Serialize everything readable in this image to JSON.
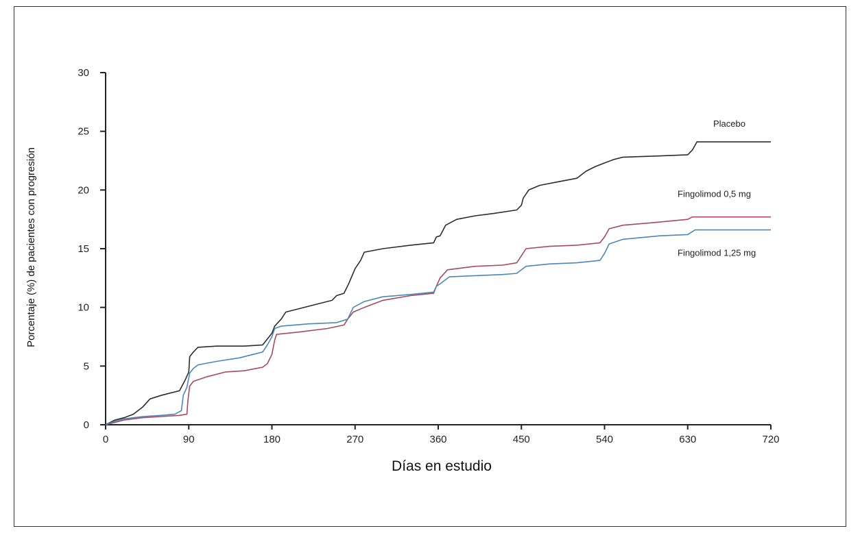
{
  "chart_data": {
    "type": "line",
    "title": "",
    "xlabel": "Días en estudio",
    "ylabel": "Porcentaje (%) de pacientes con progresión",
    "xlim": [
      0,
      720
    ],
    "ylim": [
      0,
      30
    ],
    "x_ticks": [
      0,
      90,
      180,
      270,
      360,
      450,
      540,
      630,
      720
    ],
    "y_ticks": [
      0,
      5,
      10,
      15,
      20,
      25,
      30
    ],
    "grid": false,
    "legend": "inline labels at right end of lines",
    "step": true,
    "series": [
      {
        "name": "Placebo",
        "color": "#2b2b2b",
        "points": [
          [
            0,
            0
          ],
          [
            10,
            0.4
          ],
          [
            20,
            0.6
          ],
          [
            30,
            0.9
          ],
          [
            40,
            1.5
          ],
          [
            48,
            2.2
          ],
          [
            60,
            2.5
          ],
          [
            70,
            2.7
          ],
          [
            80,
            2.9
          ],
          [
            86,
            3.8
          ],
          [
            90,
            4.5
          ],
          [
            91,
            5.8
          ],
          [
            95,
            6.2
          ],
          [
            100,
            6.6
          ],
          [
            120,
            6.7
          ],
          [
            150,
            6.7
          ],
          [
            170,
            6.8
          ],
          [
            175,
            7.3
          ],
          [
            180,
            7.8
          ],
          [
            183,
            8.4
          ],
          [
            190,
            9.0
          ],
          [
            195,
            9.6
          ],
          [
            210,
            9.9
          ],
          [
            230,
            10.3
          ],
          [
            245,
            10.6
          ],
          [
            250,
            11.0
          ],
          [
            258,
            11.2
          ],
          [
            263,
            12.0
          ],
          [
            270,
            13.3
          ],
          [
            276,
            14.0
          ],
          [
            280,
            14.7
          ],
          [
            300,
            15.0
          ],
          [
            330,
            15.3
          ],
          [
            355,
            15.5
          ],
          [
            358,
            16.0
          ],
          [
            362,
            16.1
          ],
          [
            368,
            17.0
          ],
          [
            380,
            17.5
          ],
          [
            400,
            17.8
          ],
          [
            420,
            18.0
          ],
          [
            445,
            18.3
          ],
          [
            450,
            18.7
          ],
          [
            452,
            19.3
          ],
          [
            458,
            20.0
          ],
          [
            470,
            20.4
          ],
          [
            490,
            20.7
          ],
          [
            510,
            21.0
          ],
          [
            520,
            21.6
          ],
          [
            530,
            22.0
          ],
          [
            540,
            22.3
          ],
          [
            550,
            22.6
          ],
          [
            560,
            22.8
          ],
          [
            600,
            22.9
          ],
          [
            630,
            23.0
          ],
          [
            635,
            23.4
          ],
          [
            640,
            24.1
          ],
          [
            720,
            24.1
          ]
        ],
        "end_label": "Placebo"
      },
      {
        "name": "Fingolimod 0,5 mg",
        "color": "#a8485c",
        "points": [
          [
            0,
            0
          ],
          [
            10,
            0.2
          ],
          [
            20,
            0.4
          ],
          [
            40,
            0.6
          ],
          [
            60,
            0.7
          ],
          [
            80,
            0.8
          ],
          [
            88,
            0.9
          ],
          [
            89,
            2.0
          ],
          [
            91,
            3.3
          ],
          [
            95,
            3.7
          ],
          [
            110,
            4.1
          ],
          [
            130,
            4.5
          ],
          [
            150,
            4.6
          ],
          [
            170,
            4.9
          ],
          [
            175,
            5.2
          ],
          [
            180,
            6.0
          ],
          [
            183,
            7.2
          ],
          [
            185,
            7.7
          ],
          [
            210,
            7.9
          ],
          [
            240,
            8.2
          ],
          [
            258,
            8.5
          ],
          [
            262,
            9.0
          ],
          [
            268,
            9.6
          ],
          [
            280,
            10.0
          ],
          [
            300,
            10.6
          ],
          [
            330,
            11.0
          ],
          [
            355,
            11.2
          ],
          [
            358,
            11.8
          ],
          [
            362,
            12.5
          ],
          [
            370,
            13.2
          ],
          [
            400,
            13.5
          ],
          [
            430,
            13.6
          ],
          [
            445,
            13.8
          ],
          [
            450,
            14.4
          ],
          [
            455,
            15.0
          ],
          [
            480,
            15.2
          ],
          [
            510,
            15.3
          ],
          [
            535,
            15.5
          ],
          [
            540,
            16.0
          ],
          [
            545,
            16.7
          ],
          [
            560,
            17.0
          ],
          [
            590,
            17.2
          ],
          [
            630,
            17.5
          ],
          [
            635,
            17.7
          ],
          [
            720,
            17.7
          ]
        ],
        "end_label": "Fingolimod 0,5 mg"
      },
      {
        "name": "Fingolimod 1,25 mg",
        "color": "#4a86b8",
        "points": [
          [
            0,
            0
          ],
          [
            10,
            0.3
          ],
          [
            20,
            0.5
          ],
          [
            40,
            0.7
          ],
          [
            60,
            0.8
          ],
          [
            75,
            0.9
          ],
          [
            82,
            1.2
          ],
          [
            84,
            2.5
          ],
          [
            88,
            3.2
          ],
          [
            91,
            4.4
          ],
          [
            95,
            4.8
          ],
          [
            100,
            5.1
          ],
          [
            120,
            5.4
          ],
          [
            145,
            5.7
          ],
          [
            160,
            6.0
          ],
          [
            170,
            6.2
          ],
          [
            175,
            6.8
          ],
          [
            180,
            7.5
          ],
          [
            183,
            8.2
          ],
          [
            190,
            8.4
          ],
          [
            220,
            8.6
          ],
          [
            250,
            8.7
          ],
          [
            262,
            9.0
          ],
          [
            268,
            10.0
          ],
          [
            280,
            10.5
          ],
          [
            300,
            10.9
          ],
          [
            330,
            11.1
          ],
          [
            355,
            11.3
          ],
          [
            358,
            11.8
          ],
          [
            362,
            12.0
          ],
          [
            372,
            12.6
          ],
          [
            400,
            12.7
          ],
          [
            430,
            12.8
          ],
          [
            445,
            12.9
          ],
          [
            450,
            13.2
          ],
          [
            455,
            13.5
          ],
          [
            480,
            13.7
          ],
          [
            510,
            13.8
          ],
          [
            535,
            14.0
          ],
          [
            540,
            14.6
          ],
          [
            545,
            15.4
          ],
          [
            560,
            15.8
          ],
          [
            600,
            16.1
          ],
          [
            630,
            16.2
          ],
          [
            638,
            16.6
          ],
          [
            720,
            16.6
          ]
        ],
        "end_label": "Fingolimod 1,25 mg"
      }
    ]
  }
}
